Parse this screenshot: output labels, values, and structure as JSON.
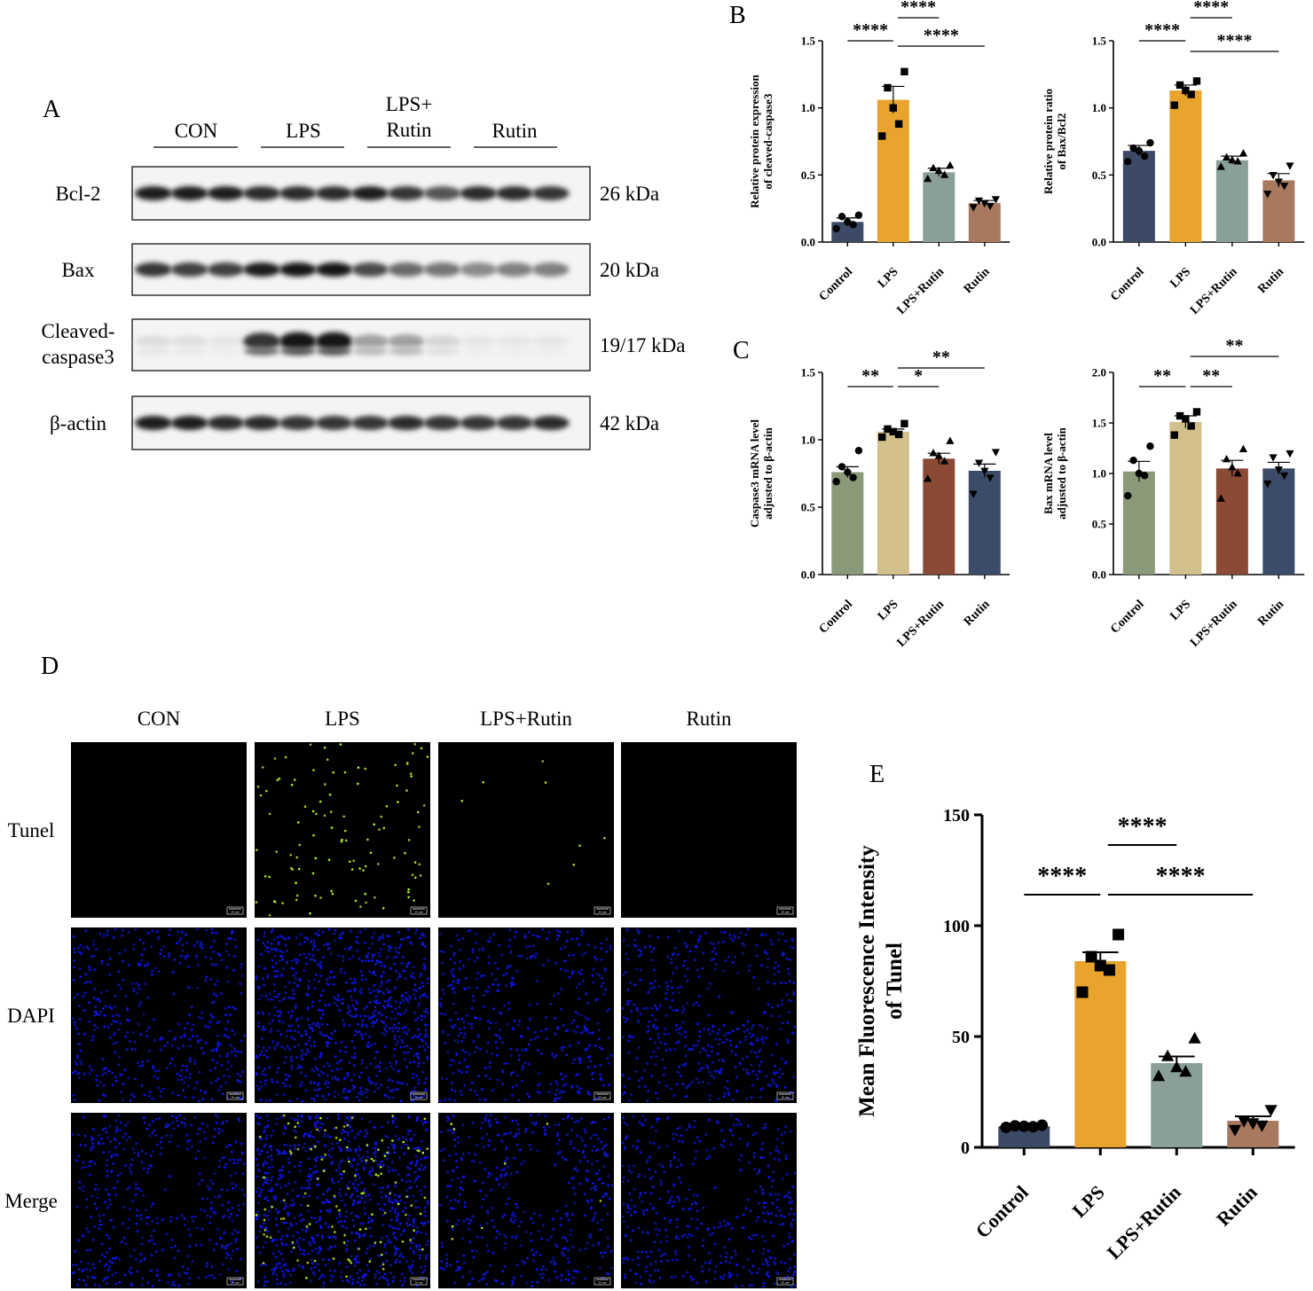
{
  "panel_letters": {
    "A": "A",
    "B": "B",
    "C": "C",
    "D": "D",
    "E": "E"
  },
  "colors": {
    "navy": "#3d4a66",
    "gold": "#e8a42c",
    "sage": "#8a9f9a",
    "tan": "#a8795f",
    "green": "#8a9a78",
    "khaki": "#d3bf8c",
    "brick": "#8a4a36",
    "slate": "#3d4b6a"
  },
  "western_blot": {
    "groups": [
      "CON",
      "LPS",
      "LPS+\nRutin",
      "Rutin"
    ],
    "rows": [
      {
        "protein": "Bcl-2",
        "kda": "26 kDa"
      },
      {
        "protein": "Bax",
        "kda": "20 kDa"
      },
      {
        "protein": "Cleaved-\ncaspase3",
        "kda": "19/17 kDa"
      },
      {
        "protein": "β-actin",
        "kda": "42 kDa"
      }
    ]
  },
  "microscopy": {
    "columns": [
      "CON",
      "LPS",
      "LPS+Rutin",
      "Rutin"
    ],
    "rows": [
      "Tunel",
      "DAPI",
      "Merge"
    ],
    "scale_bar": "20 μm"
  },
  "chart_data": [
    {
      "id": "B-left",
      "type": "bar",
      "categories": [
        "Control",
        "LPS",
        "LPS+Rutin",
        "Rutin"
      ],
      "values": [
        0.15,
        1.06,
        0.52,
        0.29
      ],
      "errors": [
        0.03,
        0.1,
        0.03,
        0.02
      ],
      "points": [
        [
          0.1,
          0.13,
          0.15,
          0.19,
          0.2
        ],
        [
          0.79,
          0.88,
          1.0,
          1.15,
          1.27
        ],
        [
          0.47,
          0.5,
          0.53,
          0.55,
          0.57
        ],
        [
          0.26,
          0.27,
          0.29,
          0.31,
          0.32
        ]
      ],
      "ylabel": "Relative protein expression\nof cleaved-caspase3",
      "ylim": [
        0,
        1.5
      ],
      "yticks": [
        "0.0",
        "0.5",
        "1.0",
        "1.5"
      ],
      "colors": [
        "#3d4a66",
        "#e8a42c",
        "#8a9f9a",
        "#a8795f"
      ],
      "markers": [
        "circle",
        "square",
        "triangle",
        "triangle-down"
      ],
      "sig": [
        {
          "a": 0,
          "b": 1,
          "label": "****"
        },
        {
          "a": 1,
          "b": 2,
          "label": "****"
        },
        {
          "a": 1,
          "b": 3,
          "label": "****"
        }
      ]
    },
    {
      "id": "B-right",
      "type": "bar",
      "categories": [
        "Control",
        "LPS",
        "LPS+Rutin",
        "Rutin"
      ],
      "values": [
        0.68,
        1.13,
        0.61,
        0.46
      ],
      "errors": [
        0.04,
        0.04,
        0.03,
        0.05
      ],
      "points": [
        [
          0.6,
          0.64,
          0.68,
          0.7,
          0.74
        ],
        [
          1.02,
          1.1,
          1.13,
          1.17,
          1.2
        ],
        [
          0.56,
          0.6,
          0.61,
          0.63,
          0.66
        ],
        [
          0.36,
          0.42,
          0.45,
          0.5,
          0.57
        ]
      ],
      "ylabel": "Relative protein ratio\nof Bax/Bcl2",
      "ylim": [
        0,
        1.5
      ],
      "yticks": [
        "0.0",
        "0.5",
        "1.0",
        "1.5"
      ],
      "colors": [
        "#3d4a66",
        "#e8a42c",
        "#8a9f9a",
        "#a8795f"
      ],
      "markers": [
        "circle",
        "square",
        "triangle",
        "triangle-down"
      ],
      "sig": [
        {
          "a": 0,
          "b": 1,
          "label": "****"
        },
        {
          "a": 1,
          "b": 2,
          "label": "****"
        },
        {
          "a": 1,
          "b": 3,
          "label": "****"
        }
      ]
    },
    {
      "id": "C-left",
      "type": "bar",
      "categories": [
        "Control",
        "LPS",
        "LPS+Rutin",
        "Rutin"
      ],
      "values": [
        0.76,
        1.06,
        0.86,
        0.77
      ],
      "errors": [
        0.04,
        0.02,
        0.04,
        0.05
      ],
      "points": [
        [
          0.69,
          0.72,
          0.76,
          0.8,
          0.92
        ],
        [
          1.02,
          1.04,
          1.06,
          1.08,
          1.12
        ],
        [
          0.71,
          0.84,
          0.88,
          0.9,
          0.99
        ],
        [
          0.6,
          0.72,
          0.77,
          0.83,
          0.91
        ]
      ],
      "ylabel": "Caspase3 mRNA level\nadjusted to β-actin",
      "ylim": [
        0,
        1.5
      ],
      "yticks": [
        "0.0",
        "0.5",
        "1.0",
        "1.5"
      ],
      "colors": [
        "#8a9a78",
        "#d3bf8c",
        "#8a4a36",
        "#3d4b6a"
      ],
      "markers": [
        "circle",
        "square",
        "triangle",
        "triangle-down"
      ],
      "sig": [
        {
          "a": 0,
          "b": 1,
          "label": "**"
        },
        {
          "a": 1,
          "b": 2,
          "label": "*"
        },
        {
          "a": 1,
          "b": 3,
          "label": "**"
        }
      ]
    },
    {
      "id": "C-right",
      "type": "bar",
      "categories": [
        "Control",
        "LPS",
        "LPS+Rutin",
        "Rutin"
      ],
      "values": [
        1.02,
        1.51,
        1.05,
        1.05
      ],
      "errors": [
        0.1,
        0.06,
        0.08,
        0.06
      ],
      "points": [
        [
          0.78,
          0.98,
          1.0,
          1.13,
          1.27
        ],
        [
          1.38,
          1.47,
          1.54,
          1.57,
          1.61
        ],
        [
          0.75,
          1.0,
          1.06,
          1.14,
          1.24
        ],
        [
          0.9,
          0.98,
          1.04,
          1.16,
          1.2
        ]
      ],
      "ylabel": "Bax mRNA level\nadjusted to β-actin",
      "ylim": [
        0,
        2.0
      ],
      "yticks": [
        "0.0",
        "0.5",
        "1.0",
        "1.5",
        "2.0"
      ],
      "colors": [
        "#8a9a78",
        "#d3bf8c",
        "#8a4a36",
        "#3d4b6a"
      ],
      "markers": [
        "circle",
        "square",
        "triangle",
        "triangle-down"
      ],
      "sig": [
        {
          "a": 0,
          "b": 1,
          "label": "**"
        },
        {
          "a": 1,
          "b": 2,
          "label": "**"
        },
        {
          "a": 1,
          "b": 3,
          "label": "**"
        }
      ]
    },
    {
      "id": "E",
      "type": "bar",
      "categories": [
        "Control",
        "LPS",
        "LPS+Rutin",
        "Rutin"
      ],
      "values": [
        9.5,
        84,
        38,
        12
      ],
      "errors": [
        0.4,
        4,
        3,
        2
      ],
      "points": [
        [
          9,
          9.3,
          9.5,
          9.7,
          10
        ],
        [
          70,
          80,
          82,
          86,
          96
        ],
        [
          32,
          34,
          36,
          41,
          49
        ],
        [
          8,
          10,
          11,
          12,
          17
        ]
      ],
      "ylabel": "Mean Fluorescence Intensity\nof Tunel",
      "ylim": [
        0,
        150
      ],
      "yticks": [
        "0",
        "50",
        "100",
        "150"
      ],
      "colors": [
        "#3d4a66",
        "#e8a42c",
        "#8a9f9a",
        "#a8795f"
      ],
      "markers": [
        "circle",
        "square",
        "triangle",
        "triangle-down"
      ],
      "sig": [
        {
          "a": 0,
          "b": 1,
          "label": "****"
        },
        {
          "a": 1,
          "b": 2,
          "label": "****"
        },
        {
          "a": 1,
          "b": 3,
          "label": "****"
        }
      ]
    }
  ]
}
